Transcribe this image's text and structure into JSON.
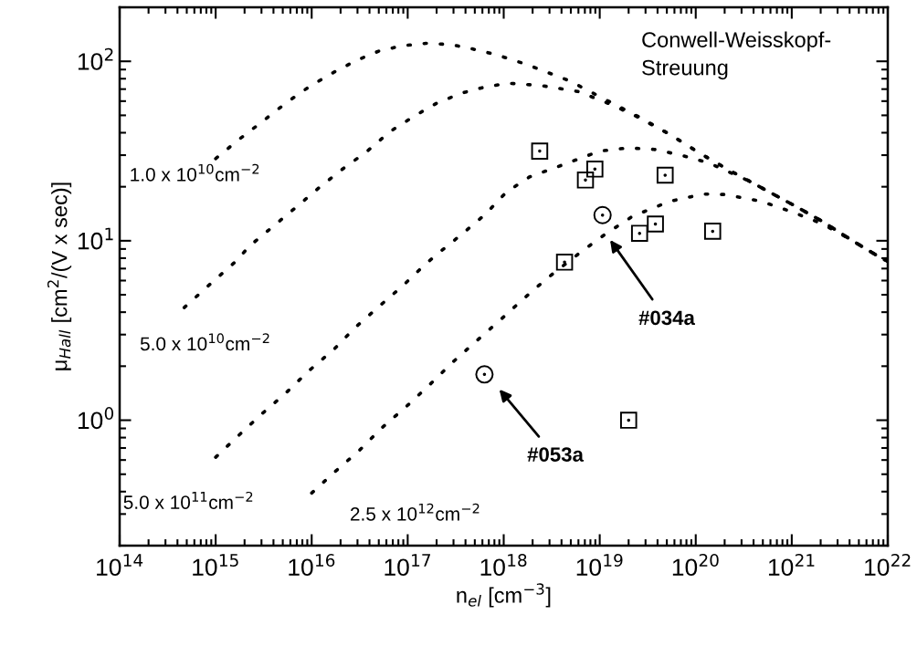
{
  "chart_data": {
    "type": "line",
    "xlabel": "n$_{el}$ [cm$^{−3}$]",
    "ylabel": "μ$_{Hall}$ [cm$^{2}$/(V x sec)]",
    "log": "xy",
    "grid": false,
    "legend": false,
    "xlim": [
      100000000000000.0,
      1e+22
    ],
    "ylim": [
      0.2,
      200
    ],
    "xticks": [
      {
        "value": 100000000000000.0,
        "label": "10$^{14}$"
      },
      {
        "value": 1000000000000000.0,
        "label": "10$^{15}$"
      },
      {
        "value": 1e+16,
        "label": "10$^{16}$"
      },
      {
        "value": 1e+17,
        "label": "10$^{17}$"
      },
      {
        "value": 1e+18,
        "label": "10$^{18}$"
      },
      {
        "value": 1e+19,
        "label": "10$^{19}$"
      },
      {
        "value": 1e+20,
        "label": "10$^{20}$"
      },
      {
        "value": 1e+21,
        "label": "10$^{21}$"
      },
      {
        "value": 1e+22,
        "label": "10$^{22}$"
      }
    ],
    "yticks": [
      {
        "value": 1,
        "label": "10$^{0}$"
      },
      {
        "value": 10,
        "label": "10$^{1}$"
      },
      {
        "value": 100,
        "label": "10$^{2}$"
      }
    ],
    "series": [
      {
        "name": "1.0 x 10$^{10}$cm$^{−2}$",
        "line_style": "dotted",
        "color": "#000000",
        "x": [
          1000000000000000.0,
          1740000000000000.0,
          3100000000000000.0,
          5400000000000000.0,
          9500000000000000.0,
          1.7e+16,
          2.9e+16,
          5e+16,
          8.7e+16,
          1.55e+17,
          2.8e+17,
          4.8e+17,
          8.3e+17,
          1.74e+18,
          4.8e+18,
          1.07e+19,
          2.6e+19,
          5.4e+19,
          1.12e+20,
          2.3e+20,
          4.8e+20,
          1e+21,
          2.1e+21,
          4.3e+21,
          8.9e+21,
          1e+22
        ],
        "values": [
          28.7,
          36.6,
          46.4,
          58.6,
          72.4,
          86.9,
          101,
          114,
          122,
          126,
          124,
          117,
          109,
          96,
          78,
          62.4,
          48.8,
          39.1,
          30.6,
          24.5,
          19.8,
          16.0,
          12.8,
          10.0,
          7.9,
          7.7
        ]
      },
      {
        "name": "5.0 x 10$^{10}$cm$^{−2}$",
        "line_style": "dotted",
        "color": "#000000",
        "x": [
          470000000000000.0,
          930000000000000.0,
          1700000000000000.0,
          2200000000000000.0,
          4100000000000000.0,
          7200000000000000.0,
          1.2e+16,
          2.1e+16,
          3.8e+16,
          6.5e+16,
          1.17e+17,
          2e+17,
          3.6e+17,
          6.3e+17,
          1.12e+18,
          2.5e+18,
          6e+18,
          1.26e+19,
          2.2e+19,
          5.4e+19,
          1.12e+20,
          2.3e+20,
          4.8e+20,
          1e+21,
          2.1e+21,
          4.3e+21,
          8.9e+21,
          1e+22
        ],
        "values": [
          4.24,
          5.9,
          7.85,
          9.25,
          12.2,
          15.7,
          19.8,
          25.1,
          31.6,
          40.5,
          49.5,
          58.4,
          66.4,
          71.8,
          75.5,
          73.2,
          67.8,
          58,
          50.6,
          39.1,
          30.6,
          24.5,
          19.8,
          16.0,
          12.8,
          10.0,
          7.9,
          7.7
        ]
      },
      {
        "name": "5.0 x 10$^{11}$cm$^{−2}$",
        "line_style": "dotted",
        "color": "#000000",
        "x": [
          1000000000000000.0,
          1740000000000000.0,
          3000000000000000.0,
          5400000000000000.0,
          9300000000000000.0,
          1.7e+16,
          2.9e+16,
          5.1e+16,
          9.1e+16,
          1.55e+17,
          2.1e+17,
          3.6e+17,
          6.3e+17,
          1.07e+18,
          1.86e+18,
          3.4e+18,
          1e+19,
          1.95e+19,
          3.7e+19,
          7.2e+19,
          1.38e+20,
          3.6e+20,
          1e+21,
          2.1e+21,
          4.3e+21,
          8.9e+21,
          1e+22
        ],
        "values": [
          0.622,
          0.824,
          1.08,
          1.42,
          1.88,
          2.48,
          3.32,
          4.33,
          5.68,
          7.46,
          8.55,
          10.8,
          13.9,
          18.7,
          22.7,
          25.5,
          31.6,
          32.9,
          32.3,
          29.9,
          27.1,
          21.5,
          16.0,
          12.8,
          10.0,
          7.9,
          7.7
        ]
      },
      {
        "name": "2.5 x 10$^{12}$cm$^{−2}$",
        "line_style": "dotted",
        "color": "#000000",
        "x": [
          1e+16,
          1.74e+16,
          3.2e+16,
          5.4e+16,
          9.8e+16,
          1.7e+17,
          2.9e+17,
          5.1e+17,
          9.1e+17,
          1.58e+18,
          2.8e+18,
          6.5e+18,
          1.12e+19,
          2.2e+19,
          5.4e+19,
          1.2e+20,
          2e+20,
          4.8e+20,
          1e+21,
          2.1e+21,
          4.3e+21,
          8.9e+21,
          1e+22
        ],
        "values": [
          0.393,
          0.515,
          0.686,
          0.908,
          1.2,
          1.58,
          2.09,
          2.74,
          3.6,
          4.71,
          6.15,
          8.73,
          10.8,
          13.7,
          16.6,
          18.2,
          18.1,
          16.6,
          14.5,
          12.4,
          10.0,
          7.9,
          7.7
        ]
      },
      {
        "type": "scatter",
        "marker": "square",
        "color": "#000000",
        "x": [
          2.37e+18,
          7.1e+18,
          8.9e+18,
          4.8e+19,
          2.6e+19,
          3.8e+19,
          1.5e+20,
          4.3e+18,
          2e+19
        ],
        "values": [
          31.6,
          21.8,
          25.1,
          23.2,
          11.0,
          12.4,
          11.3,
          7.6,
          1.0
        ]
      },
      {
        "type": "scatter",
        "marker": "circle",
        "color": "#000000",
        "x": [
          1.07e+19,
          6.3e+17
        ],
        "values": [
          13.9,
          1.8
        ]
      }
    ],
    "annotations": [
      "Conwell-Weisskopf-\nStreuung",
      "#034a",
      "#053a"
    ]
  }
}
